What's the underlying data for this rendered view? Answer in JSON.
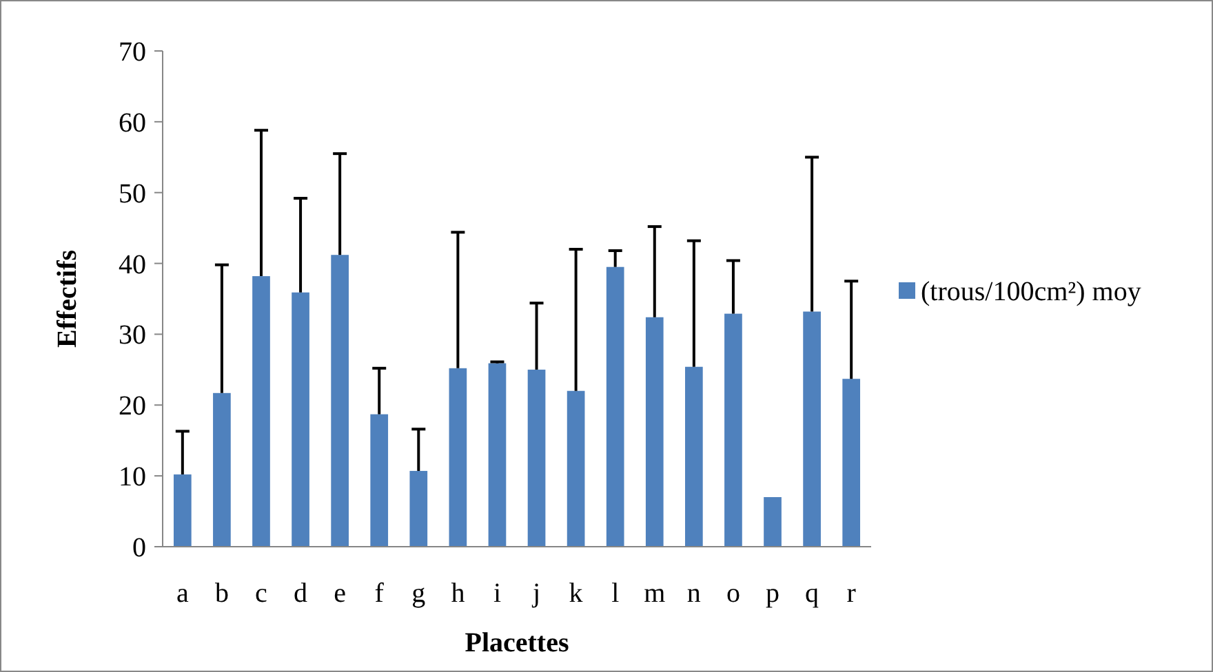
{
  "chart_data": {
    "type": "bar",
    "xlabel": "Placettes",
    "ylabel": "Effectifs",
    "categories": [
      "a",
      "b",
      "c",
      "d",
      "e",
      "f",
      "g",
      "h",
      "i",
      "j",
      "k",
      "l",
      "m",
      "n",
      "o",
      "p",
      "q",
      "r"
    ],
    "series": [
      {
        "name": "(trous/100cm²) moy",
        "color": "#4f81bd",
        "values": [
          10.2,
          21.7,
          38.2,
          35.9,
          41.2,
          18.7,
          10.7,
          25.2,
          25.9,
          25,
          22,
          39.5,
          32.4,
          25.4,
          32.9,
          7,
          33.2,
          23.7
        ],
        "errors": [
          [
            10.2,
            16.3
          ],
          [
            21.7,
            39.8
          ],
          [
            38.2,
            58.8
          ],
          [
            35.9,
            49.2
          ],
          [
            41.2,
            55.5
          ],
          [
            18.7,
            25.2
          ],
          [
            10.7,
            16.6
          ],
          [
            25.2,
            44.4
          ],
          [
            25.9,
            26.1
          ],
          [
            25,
            34.4
          ],
          [
            22,
            42
          ],
          [
            39.5,
            41.8
          ],
          [
            32.4,
            45.2
          ],
          [
            25.4,
            43.2
          ],
          [
            32.9,
            40.4
          ],
          null,
          [
            33.2,
            55
          ],
          [
            23.7,
            37.5
          ]
        ]
      }
    ],
    "ylim": [
      0,
      70
    ],
    "yticks": [
      0,
      10,
      20,
      30,
      40,
      50,
      60,
      70
    ],
    "grid": false,
    "legend": "right"
  }
}
